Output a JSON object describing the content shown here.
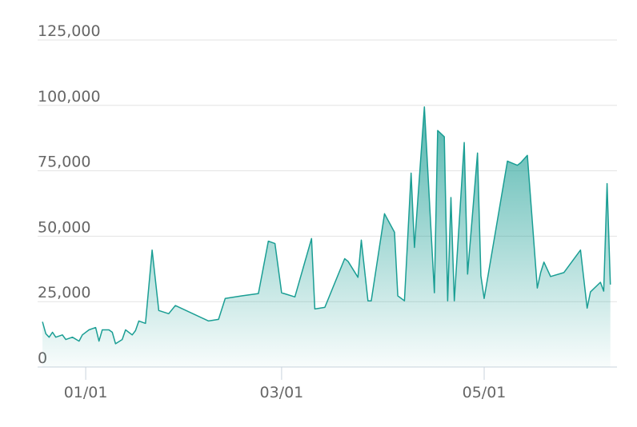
{
  "chart_data": {
    "type": "area",
    "color": "#1a9e94",
    "x": [
      "12/19",
      "12/20",
      "12/21",
      "12/22",
      "12/23",
      "12/25",
      "12/26",
      "12/28",
      "12/30",
      "12/31",
      "01/02",
      "01/04",
      "01/05",
      "01/06",
      "01/08",
      "01/09",
      "01/10",
      "01/12",
      "01/13",
      "01/15",
      "01/16",
      "01/17",
      "01/19",
      "01/21",
      "01/23",
      "01/26",
      "01/28",
      "02/07",
      "02/10",
      "02/12",
      "02/17",
      "02/22",
      "02/25",
      "02/27",
      "03/01",
      "03/05",
      "03/10",
      "03/11",
      "03/14",
      "03/20",
      "03/21",
      "03/24",
      "03/25",
      "03/27",
      "03/28",
      "04/01",
      "04/04",
      "04/05",
      "04/07",
      "04/09",
      "04/10",
      "04/13",
      "04/16",
      "04/17",
      "04/19",
      "04/20",
      "04/21",
      "04/22",
      "04/25",
      "04/26",
      "04/29",
      "04/30",
      "05/01",
      "05/08",
      "05/11",
      "05/12",
      "05/14",
      "05/17",
      "05/18",
      "05/19",
      "05/21",
      "05/25",
      "05/30",
      "06/01",
      "06/02",
      "06/05",
      "06/06",
      "06/07",
      "06/08"
    ],
    "values": [
      17300,
      12700,
      11400,
      13300,
      11400,
      12300,
      10500,
      11400,
      9900,
      12300,
      14200,
      15100,
      9900,
      14200,
      14200,
      13300,
      8900,
      10500,
      14200,
      12300,
      13900,
      17600,
      16700,
      44700,
      21600,
      20400,
      23500,
      17600,
      18200,
      26200,
      27200,
      28100,
      48100,
      47200,
      28400,
      26800,
      49100,
      22200,
      22800,
      41400,
      40400,
      34300,
      48500,
      25300,
      25300,
      58600,
      51500,
      27200,
      25300,
      74100,
      45700,
      99400,
      28400,
      90400,
      88000,
      25300,
      64800,
      25300,
      85800,
      35500,
      81800,
      34900,
      26200,
      78700,
      77100,
      78100,
      80900,
      30200,
      36100,
      40100,
      34600,
      36100,
      44700,
      22500,
      28700,
      32400,
      29000,
      70100,
      31500
    ],
    "xlim": [
      "12/18",
      "06/10"
    ],
    "xticks": [
      "01/01",
      "03/01",
      "05/01"
    ],
    "ylim": [
      0,
      125000
    ],
    "yticks": [
      0,
      {
        "value": 25000,
        "label": "25,000"
      },
      {
        "value": 50000,
        "label": "50,000"
      },
      {
        "value": 75000,
        "label": "75,000"
      },
      {
        "value": 100000,
        "label": "100,000"
      },
      {
        "value": 125000,
        "label": "125,000"
      }
    ],
    "grid": true
  }
}
